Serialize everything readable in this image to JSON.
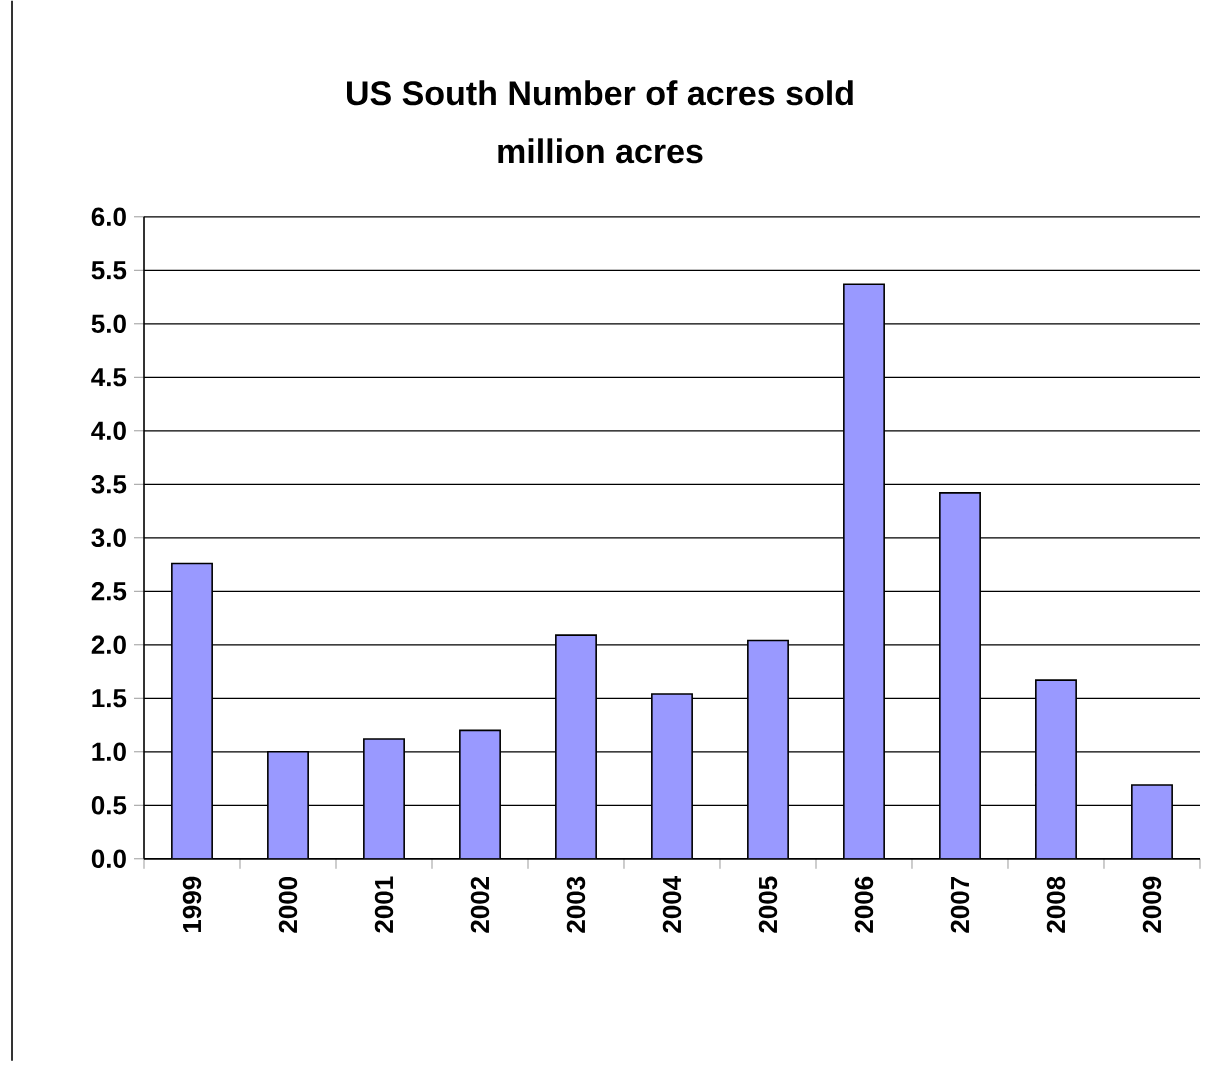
{
  "chart_data": {
    "type": "bar",
    "title": "US South Number of acres sold",
    "subtitle": "million acres",
    "categories": [
      "1999",
      "2000",
      "2001",
      "2002",
      "2003",
      "2004",
      "2005",
      "2006",
      "2007",
      "2008",
      "2009"
    ],
    "values": [
      2.76,
      1.0,
      1.12,
      1.2,
      2.09,
      1.54,
      2.04,
      5.37,
      3.42,
      1.67,
      0.69
    ],
    "color": "#9999ff",
    "ylim": [
      0,
      6
    ],
    "yticks": [
      {
        "value": 0,
        "label": "0.0"
      },
      {
        "value": 0.5,
        "label": "0.5"
      },
      {
        "value": 1,
        "label": "1.0"
      },
      {
        "value": 1.5,
        "label": "1.5"
      },
      {
        "value": 2,
        "label": "2.0"
      },
      {
        "value": 2.5,
        "label": "2.5"
      },
      {
        "value": 3,
        "label": "3.0"
      },
      {
        "value": 3.5,
        "label": "3.5"
      },
      {
        "value": 4,
        "label": "4.0"
      },
      {
        "value": 4.5,
        "label": "4.5"
      },
      {
        "value": 5,
        "label": "5.0"
      },
      {
        "value": 5.5,
        "label": "5.5"
      },
      {
        "value": 6,
        "label": "6.0"
      }
    ],
    "grid": "y"
  }
}
